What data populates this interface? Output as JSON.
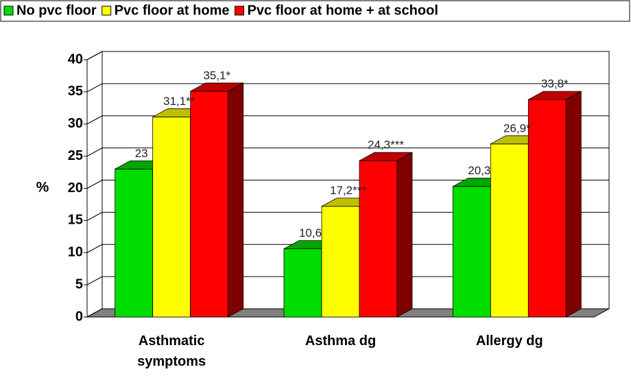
{
  "chart_data": {
    "type": "bar3d",
    "categories": [
      "Asthmatic symptoms",
      "Asthma dg",
      "Allergy dg"
    ],
    "series": [
      {
        "name": "No pvc floor",
        "color": "#00dd00",
        "values": [
          23,
          10.6,
          20.3
        ],
        "value_labels": [
          "23",
          "10,6",
          "20,3"
        ]
      },
      {
        "name": "Pvc floor at home",
        "color": "#ffff00",
        "values": [
          31.1,
          17.2,
          26.9
        ],
        "value_labels": [
          "31,1**",
          "17,2***",
          "26,9*"
        ]
      },
      {
        "name": "Pvc floor at home + at school",
        "color": "#ff0000",
        "values": [
          35.1,
          24.3,
          33.8
        ],
        "value_labels": [
          "35,1*",
          "24,3***",
          "33,8*"
        ]
      }
    ],
    "y_label": "%",
    "ylim": [
      0,
      40
    ],
    "yticks": [
      0,
      5,
      10,
      15,
      20,
      25,
      30,
      35,
      40
    ],
    "grid": true,
    "legend": "top"
  }
}
